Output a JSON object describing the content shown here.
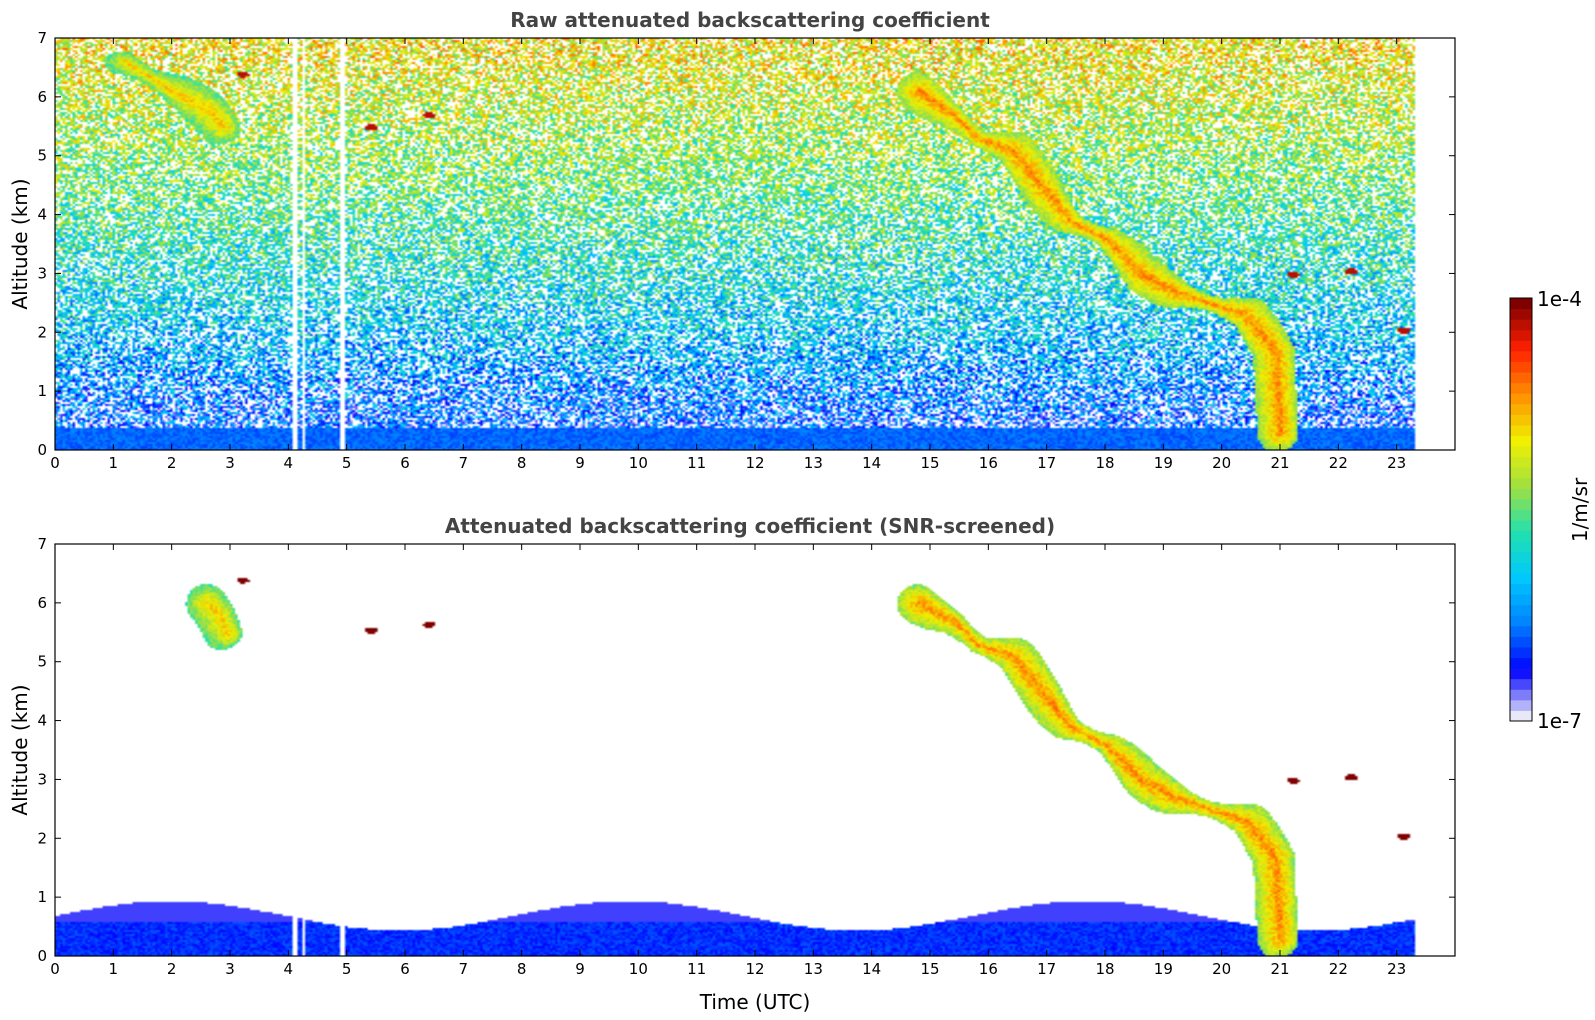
{
  "chart_data": [
    {
      "type": "heatmap",
      "title": "Raw attenuated backscattering coefficient",
      "xlabel": "",
      "ylabel": "Altitude (km)",
      "xlim": [
        0,
        24
      ],
      "ylim": [
        0,
        7
      ],
      "x_ticks": [
        "0",
        "1",
        "2",
        "3",
        "4",
        "5",
        "6",
        "7",
        "8",
        "9",
        "10",
        "11",
        "12",
        "13",
        "14",
        "15",
        "16",
        "17",
        "18",
        "19",
        "20",
        "21",
        "22",
        "23"
      ],
      "y_ticks": [
        "0",
        "1",
        "2",
        "3",
        "4",
        "5",
        "6",
        "7"
      ],
      "data_x_range": [
        0,
        23.3
      ],
      "gaps_utc": [
        [
          4.05,
          4.15
        ],
        [
          4.2,
          4.28
        ],
        [
          4.85,
          4.95
        ]
      ],
      "noise": "high",
      "features": [
        {
          "kind": "aerosol-layer",
          "x": [
            0,
            23.3
          ],
          "y": [
            0,
            0.4
          ],
          "level": 0.2
        },
        {
          "kind": "cloud",
          "points": [
            [
              1.2,
              6.6
            ],
            [
              1.7,
              6.3
            ],
            [
              2.2,
              6.0
            ],
            [
              2.6,
              5.8
            ],
            [
              2.9,
              5.5
            ]
          ],
          "level": 0.72
        },
        {
          "kind": "cloud",
          "points": [
            [
              14.8,
              6.1
            ],
            [
              15.4,
              5.7
            ],
            [
              15.8,
              5.3
            ],
            [
              16.4,
              5.1
            ],
            [
              17.0,
              4.4
            ],
            [
              17.4,
              3.9
            ],
            [
              18.0,
              3.6
            ],
            [
              18.6,
              3.0
            ],
            [
              19.2,
              2.7
            ],
            [
              19.8,
              2.5
            ],
            [
              20.4,
              2.3
            ],
            [
              20.9,
              1.7
            ],
            [
              21.0,
              0.3
            ]
          ],
          "level": 0.78
        },
        {
          "kind": "small-cloud",
          "points": [
            [
              3.2,
              6.4
            ],
            [
              5.4,
              5.5
            ],
            [
              6.4,
              5.7
            ],
            [
              21.2,
              3.0
            ],
            [
              22.2,
              3.05
            ],
            [
              23.1,
              2.05
            ]
          ],
          "level": 0.95
        }
      ]
    },
    {
      "type": "heatmap",
      "title": "Attenuated backscattering coefficient (SNR-screened)",
      "xlabel": "Time (UTC)",
      "ylabel": "Altitude (km)",
      "xlim": [
        0,
        24
      ],
      "ylim": [
        0,
        7
      ],
      "x_ticks": [
        "0",
        "1",
        "2",
        "3",
        "4",
        "5",
        "6",
        "7",
        "8",
        "9",
        "10",
        "11",
        "12",
        "13",
        "14",
        "15",
        "16",
        "17",
        "18",
        "19",
        "20",
        "21",
        "22",
        "23"
      ],
      "y_ticks": [
        "0",
        "1",
        "2",
        "3",
        "4",
        "5",
        "6",
        "7"
      ],
      "data_x_range": [
        0,
        23.3
      ],
      "gaps_utc": [
        [
          4.05,
          4.15
        ],
        [
          4.2,
          4.28
        ],
        [
          4.85,
          4.95
        ]
      ],
      "noise": "screened",
      "features": [
        {
          "kind": "aerosol-layer",
          "x": [
            0,
            23.3
          ],
          "y": [
            0,
            0.6
          ],
          "level": 0.15
        },
        {
          "kind": "cloud",
          "points": [
            [
              2.6,
              6.0
            ],
            [
              2.8,
              5.8
            ],
            [
              2.95,
              5.5
            ]
          ],
          "level": 0.72
        },
        {
          "kind": "cloud",
          "points": [
            [
              14.8,
              6.0
            ],
            [
              15.4,
              5.7
            ],
            [
              15.8,
              5.3
            ],
            [
              16.4,
              5.1
            ],
            [
              17.0,
              4.4
            ],
            [
              17.4,
              3.9
            ],
            [
              18.0,
              3.6
            ],
            [
              18.6,
              3.0
            ],
            [
              19.2,
              2.7
            ],
            [
              19.8,
              2.5
            ],
            [
              20.4,
              2.3
            ],
            [
              20.9,
              1.7
            ],
            [
              21.0,
              0.3
            ]
          ],
          "level": 0.78
        },
        {
          "kind": "small-cloud",
          "points": [
            [
              3.2,
              6.4
            ],
            [
              5.4,
              5.55
            ],
            [
              6.4,
              5.65
            ],
            [
              21.2,
              3.0
            ],
            [
              22.2,
              3.05
            ],
            [
              23.1,
              2.05
            ]
          ],
          "level": 1.0
        }
      ]
    }
  ],
  "colorbar": {
    "min_label": "1e-7",
    "max_label": "1e-4",
    "unit": "1/m/sr",
    "colormap": [
      "#e8e8f8",
      "#0000ff",
      "#0080ff",
      "#00c8ff",
      "#20e0b0",
      "#a0e040",
      "#f0f000",
      "#ff9000",
      "#ff2000",
      "#800000"
    ]
  }
}
